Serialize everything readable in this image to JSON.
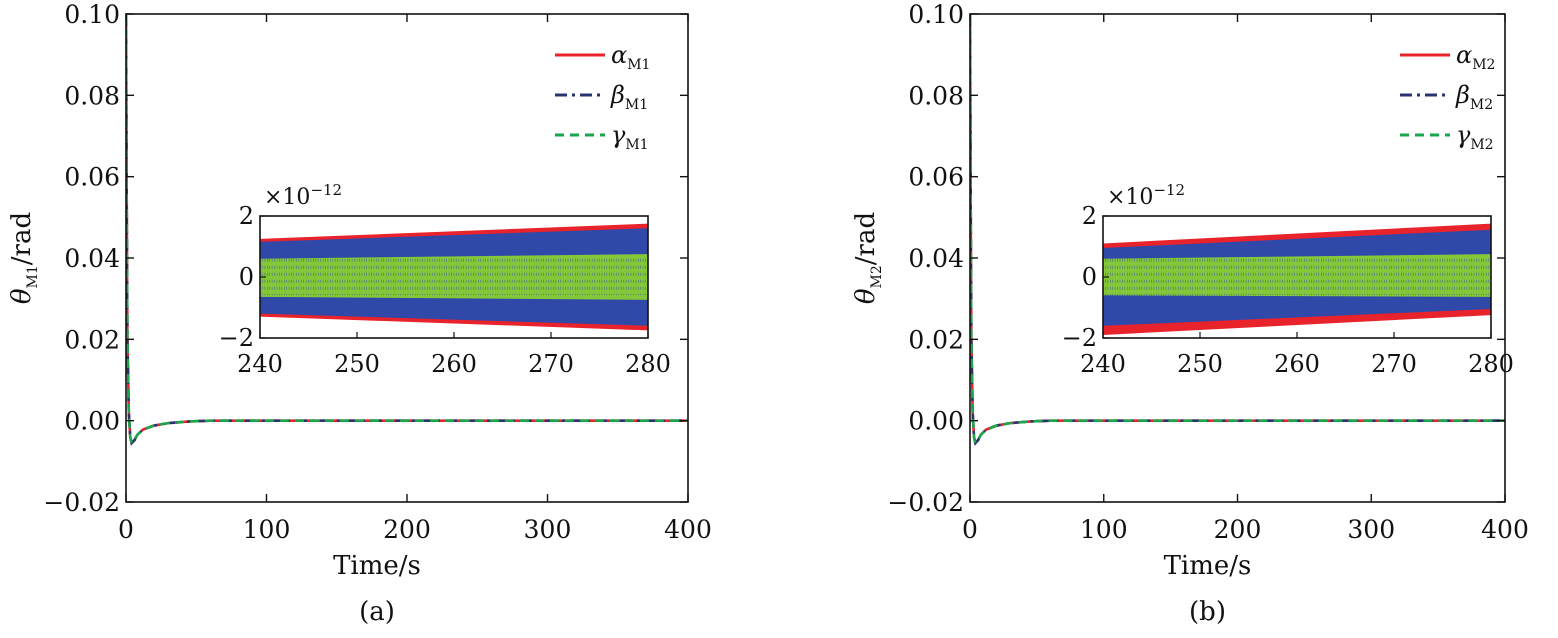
{
  "chart_data": [
    {
      "type": "line",
      "panel_label": "(a)",
      "xlabel": "Time/s",
      "ylabel_symbol": "θ",
      "ylabel_sub": "M1",
      "ylabel_unit": "/rad",
      "xlim": [
        0,
        400
      ],
      "ylim": [
        -0.02,
        0.1
      ],
      "xticks": [
        0,
        100,
        200,
        300,
        400
      ],
      "yticks": [
        -0.02,
        0.0,
        0.02,
        0.04,
        0.06,
        0.08,
        0.1
      ],
      "xtick_labels": [
        "0",
        "100",
        "200",
        "300",
        "400"
      ],
      "ytick_labels": [
        "−0.02",
        "0.00",
        "0.02",
        "0.04",
        "0.06",
        "0.08",
        "0.10"
      ],
      "grid": false,
      "legend_position": "top-right",
      "series": [
        {
          "name": "α",
          "sub": "M1",
          "color": "#e8232b",
          "dash": "solid",
          "x": [
            0,
            0.5,
            1,
            2,
            3,
            4,
            6,
            8,
            12,
            20,
            30,
            45,
            60,
            80,
            120,
            200,
            300,
            400
          ],
          "y": [
            0.1,
            0.055,
            0.02,
            0.002,
            -0.004,
            -0.0055,
            -0.0048,
            -0.0035,
            -0.0022,
            -0.0012,
            -0.0006,
            -0.0002,
            0.0,
            0.0,
            0.0,
            0.0,
            0.0,
            0.0
          ]
        },
        {
          "name": "β",
          "sub": "M1",
          "color": "#2b3270",
          "dash": "dashdot",
          "x": [
            0,
            0.5,
            1,
            2,
            3,
            4,
            6,
            8,
            12,
            20,
            30,
            45,
            60,
            80,
            120,
            200,
            300,
            400
          ],
          "y": [
            0.1,
            0.055,
            0.02,
            0.002,
            -0.004,
            -0.0055,
            -0.0048,
            -0.0035,
            -0.0022,
            -0.0012,
            -0.0006,
            -0.0002,
            0.0,
            0.0,
            0.0,
            0.0,
            0.0,
            0.0
          ]
        },
        {
          "name": "γ",
          "sub": "M1",
          "color": "#1aa64b",
          "dash": "dashed",
          "x": [
            0,
            0.5,
            1,
            2,
            3,
            4,
            6,
            8,
            12,
            20,
            30,
            45,
            60,
            80,
            120,
            200,
            300,
            400
          ],
          "y": [
            0.1,
            0.055,
            0.02,
            0.002,
            -0.004,
            -0.0055,
            -0.0048,
            -0.0035,
            -0.0022,
            -0.0012,
            -0.0006,
            -0.0002,
            0.0,
            0.0,
            0.0,
            0.0,
            0.0,
            0.0
          ]
        }
      ],
      "inset": {
        "multiplier": "×10",
        "exponent": "−12",
        "xlim": [
          240,
          280
        ],
        "ylim": [
          -2,
          2
        ],
        "xticks": [
          240,
          250,
          260,
          270,
          280
        ],
        "yticks": [
          -2,
          0,
          2
        ],
        "xtick_labels": [
          "240",
          "250",
          "260",
          "270",
          "280"
        ],
        "ytick_labels": [
          "−2",
          "0",
          "2"
        ],
        "bands": [
          {
            "color": "#e8232b",
            "upper_start": 1.25,
            "upper_end": 1.75,
            "lower_start": -1.3,
            "lower_end": -1.75
          },
          {
            "color": "#3048a8",
            "upper_start": 1.15,
            "upper_end": 1.6,
            "lower_start": -1.2,
            "lower_end": -1.6
          },
          {
            "color": "#84c83a",
            "upper_start": 0.6,
            "upper_end": 0.75,
            "lower_start": -0.65,
            "lower_end": -0.75
          }
        ]
      }
    },
    {
      "type": "line",
      "panel_label": "(b)",
      "xlabel": "Time/s",
      "ylabel_symbol": "θ",
      "ylabel_sub": "M2",
      "ylabel_unit": "/rad",
      "xlim": [
        0,
        400
      ],
      "ylim": [
        -0.02,
        0.1
      ],
      "xticks": [
        0,
        100,
        200,
        300,
        400
      ],
      "yticks": [
        -0.02,
        0.0,
        0.02,
        0.04,
        0.06,
        0.08,
        0.1
      ],
      "xtick_labels": [
        "0",
        "100",
        "200",
        "300",
        "400"
      ],
      "ytick_labels": [
        "−0.02",
        "0.00",
        "0.02",
        "0.04",
        "0.06",
        "0.08",
        "0.10"
      ],
      "grid": false,
      "legend_position": "top-right",
      "series": [
        {
          "name": "α",
          "sub": "M2",
          "color": "#e8232b",
          "dash": "solid",
          "x": [
            0,
            0.5,
            1,
            2,
            3,
            4,
            6,
            8,
            12,
            20,
            30,
            45,
            60,
            80,
            120,
            200,
            300,
            400
          ],
          "y": [
            0.1,
            0.055,
            0.02,
            0.002,
            -0.004,
            -0.0055,
            -0.0048,
            -0.0035,
            -0.0022,
            -0.0012,
            -0.0006,
            -0.0002,
            0.0,
            0.0,
            0.0,
            0.0,
            0.0,
            0.0
          ]
        },
        {
          "name": "β",
          "sub": "M2",
          "color": "#2b3270",
          "dash": "dashdot",
          "x": [
            0,
            0.5,
            1,
            2,
            3,
            4,
            6,
            8,
            12,
            20,
            30,
            45,
            60,
            80,
            120,
            200,
            300,
            400
          ],
          "y": [
            0.1,
            0.055,
            0.02,
            0.002,
            -0.004,
            -0.0055,
            -0.0048,
            -0.0035,
            -0.0022,
            -0.0012,
            -0.0006,
            -0.0002,
            0.0,
            0.0,
            0.0,
            0.0,
            0.0,
            0.0
          ]
        },
        {
          "name": "γ",
          "sub": "M2",
          "color": "#1aa64b",
          "dash": "dashed",
          "x": [
            0,
            0.5,
            1,
            2,
            3,
            4,
            6,
            8,
            12,
            20,
            30,
            45,
            60,
            80,
            120,
            200,
            300,
            400
          ],
          "y": [
            0.1,
            0.055,
            0.02,
            0.002,
            -0.004,
            -0.0055,
            -0.0048,
            -0.0035,
            -0.0022,
            -0.0012,
            -0.0006,
            -0.0002,
            0.0,
            0.0,
            0.0,
            0.0,
            0.0,
            0.0
          ]
        }
      ],
      "inset": {
        "multiplier": "×10",
        "exponent": "−12",
        "xlim": [
          240,
          280
        ],
        "ylim": [
          -2,
          2
        ],
        "xticks": [
          240,
          250,
          260,
          270,
          280
        ],
        "yticks": [
          -2,
          0,
          2
        ],
        "xtick_labels": [
          "240",
          "250",
          "260",
          "270",
          "280"
        ],
        "ytick_labels": [
          "−2",
          "0",
          "2"
        ],
        "bands": [
          {
            "color": "#e8232b",
            "upper_start": 1.1,
            "upper_end": 1.75,
            "lower_start": -1.9,
            "lower_end": -1.25
          },
          {
            "color": "#3048a8",
            "upper_start": 0.95,
            "upper_end": 1.55,
            "lower_start": -1.6,
            "lower_end": -1.05
          },
          {
            "color": "#84c83a",
            "upper_start": 0.6,
            "upper_end": 0.75,
            "lower_start": -0.6,
            "lower_end": -0.65
          }
        ]
      }
    }
  ]
}
